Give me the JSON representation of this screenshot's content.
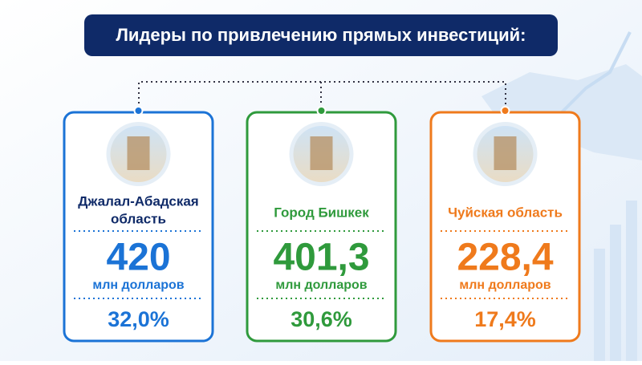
{
  "header": {
    "title": "Лидеры по привлечению прямых инвестиций:"
  },
  "cards": [
    {
      "name": [
        "Джалал-Абадская",
        "область"
      ],
      "value": "420",
      "unit": "млн долларов",
      "share": "32,0%"
    },
    {
      "name": [
        "Город Бишкек"
      ],
      "value": "401,3",
      "unit": "млн долларов",
      "share": "30,6%"
    },
    {
      "name": [
        "Чуйская область"
      ],
      "value": "228,4",
      "unit": "млн долларов",
      "share": "17,4%"
    }
  ]
}
